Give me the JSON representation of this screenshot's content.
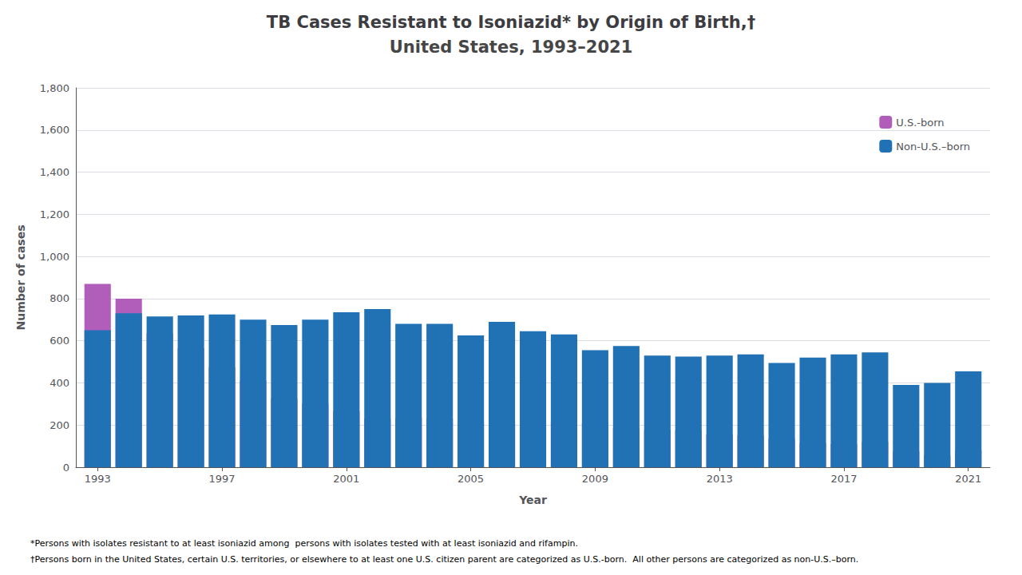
{
  "chart_data": {
    "type": "bar",
    "title": "TB Cases Resistant to Isoniazid* by Origin of Birth,†",
    "subtitle": "United States, 1993–2021",
    "x_label": "Year",
    "y_label": "Number of cases",
    "x": [
      1993,
      1994,
      1995,
      1996,
      1997,
      1998,
      1999,
      2000,
      2001,
      2002,
      2003,
      2004,
      2005,
      2006,
      2007,
      2008,
      2009,
      2010,
      2011,
      2012,
      2013,
      2014,
      2015,
      2016,
      2017,
      2018,
      2019,
      2020,
      2021
    ],
    "series": [
      {
        "name": "U.S.-born",
        "color": "#b15ebb",
        "values": [
          870,
          800,
          635,
          565,
          475,
          410,
          325,
          300,
          265,
          230,
          235,
          230,
          210,
          205,
          195,
          215,
          210,
          185,
          175,
          175,
          155,
          150,
          135,
          115,
          110,
          120,
          75,
          55,
          80
        ]
      },
      {
        "name": "Non-U.S.–born",
        "color": "#2171b5",
        "values": [
          650,
          730,
          715,
          720,
          725,
          700,
          675,
          700,
          735,
          750,
          680,
          680,
          625,
          690,
          645,
          630,
          555,
          575,
          530,
          525,
          530,
          535,
          495,
          520,
          535,
          545,
          390,
          400,
          455
        ]
      }
    ],
    "stacked": true,
    "xlim": [
      1992.3,
      2021.7
    ],
    "xticks": [
      1993,
      1997,
      2001,
      2005,
      2009,
      2013,
      2017,
      2021
    ],
    "ylim": [
      0,
      1800
    ],
    "yticks": [
      0,
      200,
      400,
      600,
      800,
      {
        "value": 1000,
        "label": "1,000"
      },
      {
        "value": 1200,
        "label": "1,200"
      },
      {
        "value": 1400,
        "label": "1,400"
      },
      {
        "value": 1600,
        "label": "1,600"
      },
      {
        "value": 1800,
        "label": "1,800"
      }
    ],
    "grid": true,
    "legend": "upper right",
    "annotations": [
      "*Persons with isolates resistant to at least isoniazid among  persons with isolates tested with at least isoniazid and rifampin.",
      "†Persons born in the United States, certain U.S. territories, or elsewhere to at least one U.S. citizen parent are categorized as U.S.-born.  All other persons are categorized as non-U.S.–born."
    ]
  }
}
